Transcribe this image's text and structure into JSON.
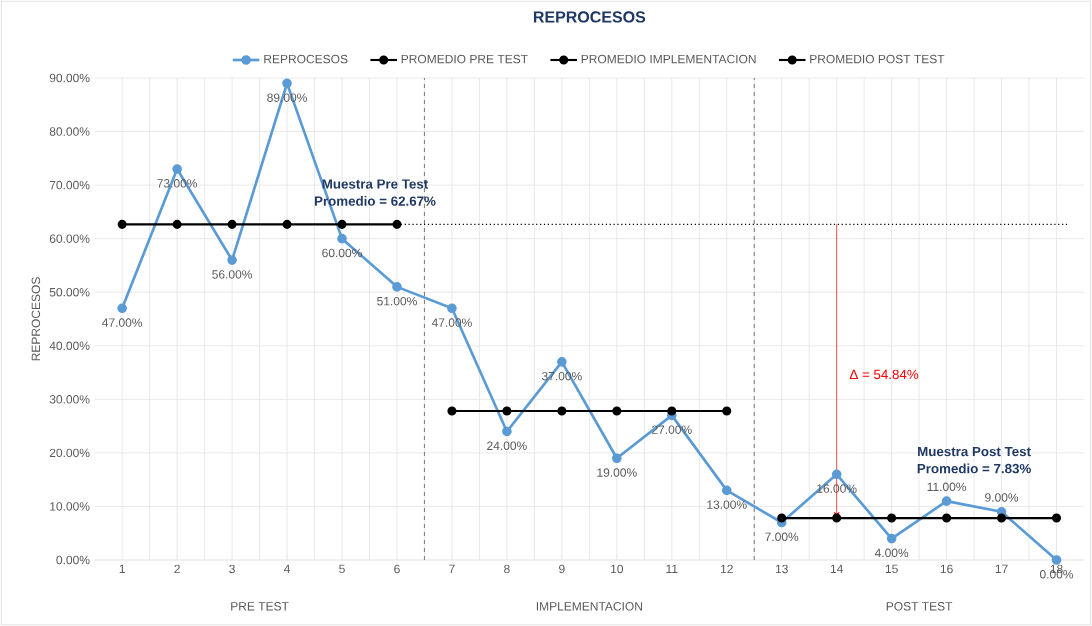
{
  "chart_data": {
    "type": "line",
    "title": "REPROCESOS",
    "ylabel": "REPROCESOS",
    "x": [
      1,
      2,
      3,
      4,
      5,
      6,
      7,
      8,
      9,
      10,
      11,
      12,
      13,
      14,
      15,
      16,
      17,
      18
    ],
    "xlim": [
      0.5,
      18.5
    ],
    "xticks": [
      1,
      2,
      3,
      4,
      5,
      6,
      7,
      8,
      9,
      10,
      11,
      12,
      13,
      14,
      15,
      16,
      17,
      18
    ],
    "ylim": [
      0,
      90
    ],
    "yticks": [
      {
        "value": 0,
        "label": "0.00%"
      },
      {
        "value": 10,
        "label": "10.00%"
      },
      {
        "value": 20,
        "label": "20.00%"
      },
      {
        "value": 30,
        "label": "30.00%"
      },
      {
        "value": 40,
        "label": "40.00%"
      },
      {
        "value": 50,
        "label": "50.00%"
      },
      {
        "value": 60,
        "label": "60.00%"
      },
      {
        "value": 70,
        "label": "70.00%"
      },
      {
        "value": 80,
        "label": "80.00%"
      },
      {
        "value": 90,
        "label": "90.00%"
      }
    ],
    "series": [
      {
        "name": "REPROCESOS",
        "color": "#5b9bd5",
        "values": [
          47,
          73,
          56,
          89,
          60,
          51,
          47,
          24,
          37,
          19,
          27,
          13,
          7,
          16,
          4,
          11,
          9,
          0
        ],
        "value_labels": [
          "47.00%",
          "73.00%",
          "56.00%",
          "89.00%",
          "60.00%",
          "51.00%",
          "47.00%",
          "24.00%",
          "37.00%",
          "19.00%",
          "27.00%",
          "13.00%",
          "7.00%",
          "16.00%",
          "4.00%",
          "11.00%",
          "9.00%",
          "0.00%"
        ]
      },
      {
        "name": "PROMEDIO PRE TEST",
        "color": "#000000",
        "values": [
          62.67,
          62.67,
          62.67,
          62.67,
          62.67,
          62.67,
          null,
          null,
          null,
          null,
          null,
          null,
          null,
          null,
          null,
          null,
          null,
          null
        ]
      },
      {
        "name": "PROMEDIO IMPLEMENTACION",
        "color": "#000000",
        "values": [
          null,
          null,
          null,
          null,
          null,
          null,
          27.83,
          27.83,
          27.83,
          27.83,
          27.83,
          27.83,
          null,
          null,
          null,
          null,
          null,
          null
        ]
      },
      {
        "name": "PROMEDIO POST TEST",
        "color": "#000000",
        "values": [
          null,
          null,
          null,
          null,
          null,
          null,
          null,
          null,
          null,
          null,
          null,
          null,
          7.83,
          7.83,
          7.83,
          7.83,
          7.83,
          7.83
        ]
      }
    ],
    "ref_lines": [
      {
        "axis": "x",
        "value": 6.5,
        "color": "#808080",
        "line_style": "dashed"
      },
      {
        "axis": "x",
        "value": 12.5,
        "color": "#808080",
        "line_style": "dashed"
      },
      {
        "axis": "y",
        "value": 62.67,
        "color": "#000000",
        "line_style": "dotted"
      }
    ],
    "annotations": [
      "Muestra Pre Test",
      "Promedio = 62.67%",
      "Δ = 54.84%",
      "Muestra Post Test",
      "Promedio = 7.83%",
      "PRE TEST",
      "IMPLEMENTACION",
      "POST TEST"
    ],
    "grid": true,
    "legend": "top",
    "marker": "circle",
    "line_style": "solid"
  }
}
